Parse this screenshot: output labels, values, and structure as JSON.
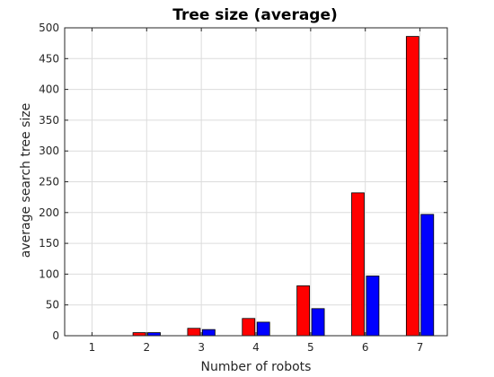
{
  "chart_data": {
    "type": "bar",
    "title": "Tree size (average)",
    "xlabel": "Number of robots",
    "ylabel": "average search tree size",
    "categories": [
      "1",
      "2",
      "3",
      "4",
      "5",
      "6",
      "7"
    ],
    "series": [
      {
        "color": "#ff0000",
        "values": [
          0,
          5,
          12,
          28,
          81,
          232,
          486
        ]
      },
      {
        "color": "#0000ff",
        "values": [
          0,
          5,
          10,
          22,
          44,
          97,
          197
        ]
      }
    ],
    "ylim": [
      0,
      500
    ],
    "yticks": [
      0,
      50,
      100,
      150,
      200,
      250,
      300,
      350,
      400,
      450,
      500
    ],
    "xticks": [
      "1",
      "2",
      "3",
      "4",
      "5",
      "6",
      "7"
    ],
    "grid": true
  }
}
